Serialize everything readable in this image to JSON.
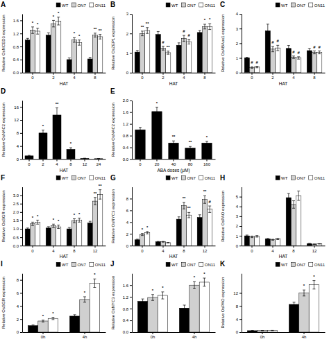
{
  "chart_data": [
    {
      "type": "bar",
      "title": "A",
      "xlabel": "HAT",
      "ylabel": "Relative OsNCED3 expression",
      "categories": [
        "0",
        "2",
        "4",
        "8"
      ],
      "series": [
        {
          "name": "WT",
          "color": "#000000",
          "values": [
            1.0,
            1.15,
            0.4,
            0.42
          ],
          "errors": [
            0.05,
            0.07,
            0.05,
            0.05
          ]
        },
        {
          "name": "ON7",
          "color": "#d0d0d0",
          "values": [
            1.3,
            1.5,
            1.0,
            1.15
          ],
          "errors": [
            0.1,
            0.1,
            0.07,
            0.06
          ],
          "sig": [
            "*",
            "*",
            "*",
            "**"
          ]
        },
        {
          "name": "ON11",
          "color": "#ffffff",
          "values": [
            1.27,
            1.58,
            0.92,
            1.1
          ],
          "errors": [
            0.09,
            0.12,
            0.08,
            0.07
          ],
          "sig": [
            "*",
            "*",
            "*",
            "**"
          ]
        }
      ],
      "ylim": [
        0,
        1.8
      ],
      "yticks": [
        {
          "value": 0,
          "label": "0.0"
        },
        0.4,
        0.8,
        1.2,
        1.6
      ],
      "legend": "upper right",
      "grid": false
    },
    {
      "type": "bar",
      "title": "B",
      "xlabel": "HAT",
      "ylabel": "Relative OsZEP1 expression",
      "categories": [
        "0",
        "2",
        "4",
        "8"
      ],
      "series": [
        {
          "name": "WT",
          "color": "#000000",
          "values": [
            1.05,
            1.95,
            1.4,
            2.05
          ],
          "errors": [
            0.08,
            0.15,
            0.12,
            0.1
          ]
        },
        {
          "name": "ON7",
          "color": "#d0d0d0",
          "values": [
            2.0,
            1.25,
            1.75,
            2.35
          ],
          "errors": [
            0.12,
            0.1,
            0.15,
            0.12
          ],
          "sig": [
            "**",
            "#",
            "#",
            "*"
          ]
        },
        {
          "name": "ON11",
          "color": "#ffffff",
          "values": [
            2.15,
            1.02,
            1.58,
            2.35
          ],
          "errors": [
            0.15,
            0.08,
            0.12,
            0.15
          ],
          "sig": [
            "**",
            "**",
            "#",
            "*"
          ]
        }
      ],
      "ylim": [
        0,
        3.0
      ],
      "yticks": [
        0,
        1,
        2,
        3
      ],
      "legend": "upper right",
      "grid": false
    },
    {
      "type": "bar",
      "title": "C",
      "xlabel": "HAT",
      "ylabel": "Relative OsABAox1 expression",
      "categories": [
        "0",
        "2",
        "4",
        "8"
      ],
      "series": [
        {
          "name": "WT",
          "color": "#000000",
          "values": [
            1.0,
            2.85,
            1.65,
            1.5
          ],
          "errors": [
            0.05,
            0.45,
            0.2,
            0.15
          ]
        },
        {
          "name": "ON7",
          "color": "#d0d0d0",
          "values": [
            0.35,
            1.6,
            1.05,
            1.38
          ],
          "errors": [
            0.05,
            0.18,
            0.08,
            0.1
          ],
          "sig": [
            "#",
            "#",
            "#",
            "#"
          ]
        },
        {
          "name": "ON11",
          "color": "#ffffff",
          "values": [
            0.38,
            1.68,
            1.0,
            1.38
          ],
          "errors": [
            0.05,
            0.18,
            0.08,
            0.1
          ],
          "sig": [
            "#",
            "#",
            "#",
            "#"
          ]
        }
      ],
      "ylim": [
        0,
        4.0
      ],
      "yticks": [
        0,
        1,
        2,
        3,
        4
      ],
      "legend": "upper right",
      "grid": false
    },
    {
      "type": "bar",
      "title": "D",
      "xlabel": "HAT",
      "ylabel": "Relative OsNAC2 expression",
      "categories": [
        "0",
        "2",
        "4",
        "8",
        "12",
        "24"
      ],
      "color": "#000000",
      "values": [
        1.0,
        8.0,
        13.5,
        3.0,
        0.25,
        0.15
      ],
      "errors": [
        0.15,
        0.9,
        2.2,
        0.5,
        0.04,
        0.03
      ],
      "sig": [
        null,
        "*",
        "**",
        "*",
        null,
        null
      ],
      "ylim": [
        0,
        18
      ],
      "yticks": [
        0,
        4,
        8,
        12,
        16
      ],
      "grid": false
    },
    {
      "type": "bar",
      "title": "E",
      "xlabel": "ABA doses (μM)",
      "ylabel": "Relative OsNAC2 expression",
      "categories": [
        "0",
        "20",
        "40",
        "80",
        "160"
      ],
      "color": "#000000",
      "values": [
        1.0,
        1.62,
        0.55,
        0.38,
        0.55
      ],
      "errors": [
        0.08,
        0.15,
        0.07,
        0.05,
        0.06
      ],
      "sig": [
        null,
        "*",
        "**",
        "**",
        "*"
      ],
      "ylim": [
        0,
        2.0
      ],
      "yticks": [
        {
          "value": 0,
          "label": "0.0"
        },
        0.4,
        0.8,
        1.2,
        1.6,
        {
          "value": 2,
          "label": "2.0"
        }
      ],
      "grid": false
    },
    {
      "type": "bar",
      "title": "F",
      "xlabel": "HAT",
      "ylabel": "Relative OsSGR expression",
      "categories": [
        "0",
        "4",
        "8",
        "12"
      ],
      "series": [
        {
          "name": "WT",
          "color": "#000000",
          "values": [
            1.0,
            1.05,
            1.0,
            1.35
          ],
          "errors": [
            0.05,
            0.08,
            0.08,
            0.1
          ]
        },
        {
          "name": "ON7",
          "color": "#d0d0d0",
          "values": [
            1.3,
            1.18,
            1.48,
            2.65
          ],
          "errors": [
            0.1,
            0.1,
            0.12,
            0.22
          ],
          "sig": [
            "*",
            "*",
            "*",
            "**"
          ]
        },
        {
          "name": "ON11",
          "color": "#ffffff",
          "values": [
            1.4,
            1.12,
            1.52,
            3.05
          ],
          "errors": [
            0.12,
            0.1,
            0.12,
            0.28
          ],
          "sig": [
            "*",
            "*",
            "*",
            "**"
          ]
        }
      ],
      "ylim": [
        0,
        3.5
      ],
      "yticks": [
        {
          "value": 0,
          "label": "0.0"
        },
        0.5,
        {
          "value": 1,
          "label": "1.0"
        },
        1.5,
        {
          "value": 2,
          "label": "2.0"
        },
        2.5,
        {
          "value": 3,
          "label": "3.0"
        }
      ],
      "legend": "upper right",
      "grid": false
    },
    {
      "type": "bar",
      "title": "G",
      "xlabel": "HAT",
      "ylabel": "Relative OsNYC3 expression",
      "categories": [
        "0",
        "4",
        "8",
        "12"
      ],
      "series": [
        {
          "name": "WT",
          "color": "#000000",
          "values": [
            1.0,
            0.65,
            4.5,
            4.8
          ],
          "errors": [
            0.1,
            0.06,
            0.4,
            0.45
          ]
        },
        {
          "name": "ON7",
          "color": "#d0d0d0",
          "values": [
            1.9,
            0.65,
            6.8,
            7.85
          ],
          "errors": [
            0.18,
            0.06,
            0.55,
            0.65
          ],
          "sig": [
            "*",
            null,
            "**",
            "**"
          ]
        },
        {
          "name": "ON11",
          "color": "#ffffff",
          "values": [
            2.2,
            0.5,
            5.2,
            6.2
          ],
          "errors": [
            0.2,
            0.05,
            0.45,
            0.55
          ],
          "sig": [
            "*",
            null,
            "**",
            "#"
          ]
        }
      ],
      "ylim": [
        0,
        10
      ],
      "yticks": [
        0,
        2,
        4,
        6,
        8
      ],
      "legend": "upper right",
      "grid": false
    },
    {
      "type": "bar",
      "title": "H",
      "xlabel": "HAT",
      "ylabel": "Relative OsPAO expression",
      "categories": [
        "0",
        "4",
        "8",
        "12"
      ],
      "series": [
        {
          "name": "WT",
          "color": "#000000",
          "values": [
            1.0,
            0.68,
            4.9,
            0.2
          ],
          "errors": [
            0.08,
            0.06,
            0.42,
            0.03
          ]
        },
        {
          "name": "ON7",
          "color": "#d0d0d0",
          "values": [
            0.9,
            0.6,
            4.2,
            0.15
          ],
          "errors": [
            0.08,
            0.05,
            0.38,
            0.02
          ]
        },
        {
          "name": "ON11",
          "color": "#ffffff",
          "values": [
            0.95,
            0.68,
            5.1,
            0.18
          ],
          "errors": [
            0.08,
            0.06,
            0.48,
            0.02
          ]
        }
      ],
      "ylim": [
        0,
        6
      ],
      "yticks": [
        0,
        1,
        2,
        3,
        4,
        5
      ],
      "legend": "upper right",
      "grid": false
    },
    {
      "type": "bar",
      "title": "I",
      "ylabel": "Relative OsSGR expression",
      "categories": [
        "0h",
        "4h"
      ],
      "series": [
        {
          "name": "WT",
          "color": "#000000",
          "values": [
            1.0,
            2.45
          ],
          "errors": [
            0.1,
            0.22
          ]
        },
        {
          "name": "ON7",
          "color": "#d0d0d0",
          "values": [
            1.7,
            5.0
          ],
          "errors": [
            0.15,
            0.42
          ],
          "sig": [
            "*",
            "*"
          ]
        },
        {
          "name": "ON11",
          "color": "#ffffff",
          "values": [
            2.1,
            7.5
          ],
          "errors": [
            0.18,
            0.65
          ],
          "sig": [
            "*",
            "*"
          ]
        }
      ],
      "ylim": [
        0,
        9
      ],
      "yticks": [
        0,
        2,
        4,
        6,
        8
      ],
      "legend": "upper right",
      "grid": false
    },
    {
      "type": "bar",
      "title": "J",
      "ylabel": "Relative OsNYC3 expression",
      "categories": [
        "0h",
        "4h"
      ],
      "series": [
        {
          "name": "WT",
          "color": "#000000",
          "values": [
            1.05,
            0.82
          ],
          "errors": [
            0.08,
            0.1
          ]
        },
        {
          "name": "ON7",
          "color": "#d0d0d0",
          "values": [
            1.18,
            1.6
          ],
          "errors": [
            0.1,
            0.12
          ],
          "sig": [
            "*",
            "*"
          ]
        },
        {
          "name": "ON11",
          "color": "#ffffff",
          "values": [
            1.25,
            1.7
          ],
          "errors": [
            0.12,
            0.14
          ],
          "sig": [
            "*",
            "*"
          ]
        }
      ],
      "ylim": [
        0,
        2.0
      ],
      "yticks": [
        {
          "value": 0,
          "label": "0.0"
        },
        0.4,
        0.8,
        1.2,
        1.6
      ],
      "legend": "upper right",
      "grid": false
    },
    {
      "type": "bar",
      "title": "K",
      "ylabel": "Relative OsPAO expression",
      "categories": [
        "0h",
        "4h"
      ],
      "series": [
        {
          "name": "WT",
          "color": "#000000",
          "values": [
            0.45,
            8.5
          ],
          "errors": [
            0.04,
            0.65
          ]
        },
        {
          "name": "ON7",
          "color": "#d0d0d0",
          "values": [
            0.48,
            12.0
          ],
          "errors": [
            0.04,
            0.92
          ],
          "sig": [
            null,
            "*"
          ]
        },
        {
          "name": "ON11",
          "color": "#ffffff",
          "values": [
            0.5,
            14.5
          ],
          "errors": [
            0.05,
            1.3
          ],
          "sig": [
            null,
            "*"
          ]
        }
      ],
      "ylim": [
        0,
        18
      ],
      "yticks": [
        0,
        4,
        8,
        12
      ],
      "legend": "upper right",
      "grid": false
    }
  ]
}
